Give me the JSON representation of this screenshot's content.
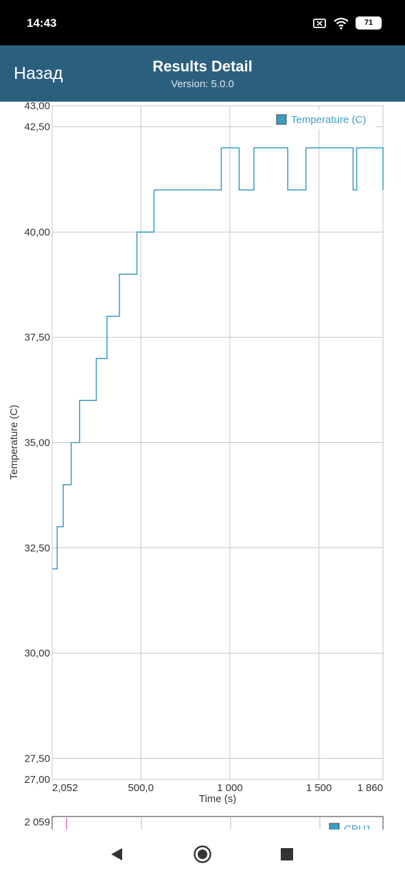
{
  "status_bar": {
    "time": "14:43",
    "battery": "71",
    "icons": [
      "sim-x-icon",
      "wifi-icon",
      "battery-icon"
    ]
  },
  "header": {
    "back_label": "Назад",
    "title": "Results Detail",
    "version": "Version: 5.0.0",
    "background_color": "#2b5f7e"
  },
  "chart_data": {
    "type": "line",
    "xlabel": "Time (s)",
    "ylabel": "Temperature (C)",
    "x_ticks": [
      "2,052",
      "500,0",
      "1 000",
      "1 500",
      "1 860"
    ],
    "x_tick_values": [
      2.052,
      500,
      1000,
      1500,
      1860
    ],
    "y_ticks": [
      "27,00",
      "27,50",
      "30,00",
      "32,50",
      "35,00",
      "37,50",
      "40,00",
      "42,50",
      "43,00"
    ],
    "y_tick_values": [
      27,
      27.5,
      30,
      32.5,
      35,
      37.5,
      40,
      42.5,
      43
    ],
    "xlim": [
      2.052,
      1860
    ],
    "ylim": [
      27,
      43
    ],
    "grid": true,
    "legend_position": "top-right",
    "series": [
      {
        "name": "Temperature (C)",
        "color": "#3d9fc4",
        "step": true,
        "points": [
          [
            2,
            32
          ],
          [
            30,
            33
          ],
          [
            64,
            34
          ],
          [
            109,
            35
          ],
          [
            156,
            36
          ],
          [
            250,
            37
          ],
          [
            310,
            38
          ],
          [
            380,
            39
          ],
          [
            478,
            40
          ],
          [
            574,
            41
          ],
          [
            952,
            42
          ],
          [
            1052,
            41
          ],
          [
            1135,
            42
          ],
          [
            1325,
            41
          ],
          [
            1427,
            42
          ],
          [
            1692,
            41
          ],
          [
            1712,
            42
          ],
          [
            1860,
            41
          ]
        ]
      }
    ],
    "second_chart": {
      "y_tick": "2 059",
      "legend": "CPU1",
      "color": "#d96bc0"
    }
  }
}
